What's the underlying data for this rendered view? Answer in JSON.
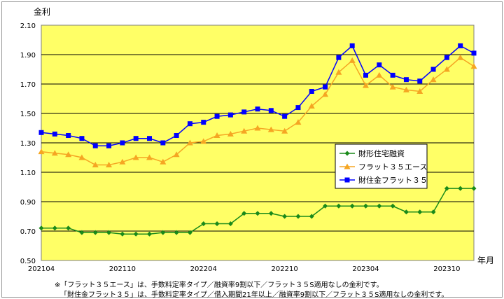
{
  "chart_data": {
    "type": "line",
    "ylabel": "金利",
    "xlabel": "年月",
    "ylim": [
      0.5,
      2.1
    ],
    "yticks": [
      "2.10",
      "1.90",
      "1.70",
      "1.50",
      "1.30",
      "1.10",
      "0.90",
      "0.70",
      "0.50"
    ],
    "xtick_labels": [
      "202104",
      "202110",
      "202204",
      "202210",
      "202304",
      "202310"
    ],
    "grid": true,
    "legend_position": "right-center",
    "x": [
      "202104",
      "202105",
      "202106",
      "202107",
      "202108",
      "202109",
      "202110",
      "202111",
      "202112",
      "202201",
      "202202",
      "202203",
      "202204",
      "202205",
      "202206",
      "202207",
      "202208",
      "202209",
      "202210",
      "202211",
      "202212",
      "202301",
      "202302",
      "202303",
      "202304",
      "202305",
      "202306",
      "202307",
      "202308",
      "202309",
      "202310",
      "202311",
      "202312"
    ],
    "series": [
      {
        "name": "財形住宅融資",
        "color": "#1a8a1a",
        "marker": "diamond",
        "values": [
          0.72,
          0.72,
          0.72,
          0.69,
          0.69,
          0.69,
          0.68,
          0.68,
          0.68,
          0.69,
          0.69,
          0.69,
          0.75,
          0.75,
          0.75,
          0.82,
          0.82,
          0.82,
          0.8,
          0.8,
          0.8,
          0.87,
          0.87,
          0.87,
          0.87,
          0.87,
          0.87,
          0.83,
          0.83,
          0.83,
          0.99,
          0.99,
          0.99
        ]
      },
      {
        "name": "フラット３５エース",
        "color": "#f5a623",
        "marker": "triangle",
        "values": [
          1.24,
          1.23,
          1.22,
          1.2,
          1.15,
          1.15,
          1.17,
          1.2,
          1.2,
          1.17,
          1.22,
          1.3,
          1.31,
          1.35,
          1.36,
          1.38,
          1.4,
          1.39,
          1.38,
          1.44,
          1.55,
          1.63,
          1.78,
          1.86,
          1.69,
          1.76,
          1.68,
          1.66,
          1.65,
          1.73,
          1.8,
          1.88,
          1.82
        ]
      },
      {
        "name": "財住金フラット３５",
        "color": "#0000ff",
        "marker": "square",
        "values": [
          1.37,
          1.36,
          1.35,
          1.33,
          1.28,
          1.28,
          1.3,
          1.33,
          1.33,
          1.3,
          1.35,
          1.43,
          1.44,
          1.48,
          1.49,
          1.51,
          1.53,
          1.52,
          1.48,
          1.54,
          1.65,
          1.68,
          1.88,
          1.96,
          1.76,
          1.83,
          1.76,
          1.73,
          1.72,
          1.8,
          1.88,
          1.96,
          1.91
        ]
      }
    ],
    "plot_background": "#ffff66",
    "gridline_color": "#000000"
  },
  "notes": [
    "※「フラット３５エース」は、手数料定率タイプ／融資率9割以下／フラット３５S適用なしの金利です。",
    "「財住金フラット３５」は、手数料定率タイプ／借入期間21年以上／融資率9割以下／フラット３５S適用なしの金利です。"
  ]
}
